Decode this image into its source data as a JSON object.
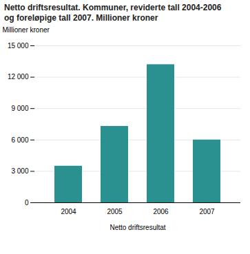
{
  "chart_data": {
    "type": "bar",
    "title": "Netto driftsresultat. Kommuner, reviderte tall 2004-2006",
    "subtitle": "og foreløpige tall 2007. Millioner kroner",
    "ylabel": "Millioner kroner",
    "xlabel": "Netto driftsresultat",
    "categories": [
      "2004",
      "2005",
      "2006",
      "2007"
    ],
    "values": [
      3500,
      7300,
      13200,
      6000
    ],
    "color": "#2a9090",
    "ylim": [
      0,
      15000
    ],
    "yticks": [
      0,
      {
        "value": 3000,
        "label": "3 000"
      },
      {
        "value": 6000,
        "label": "6 000"
      },
      {
        "value": 9000,
        "label": "9 000"
      },
      {
        "value": 12000,
        "label": "12 000"
      },
      {
        "value": 15000,
        "label": "15 000"
      }
    ],
    "grid": true
  }
}
